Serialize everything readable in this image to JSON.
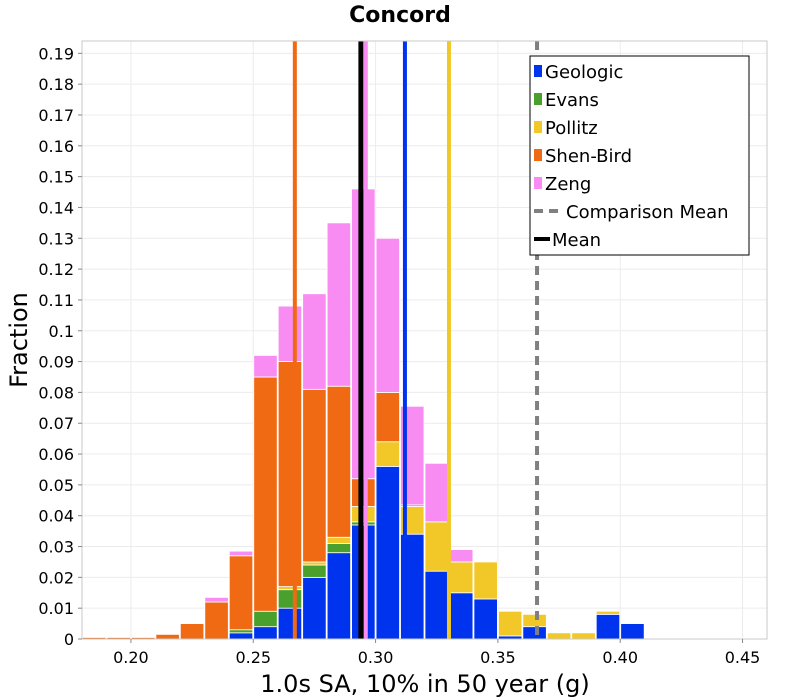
{
  "chart_data": {
    "type": "bar",
    "stacked": true,
    "title": "Concord",
    "xlabel": "1.0s SA, 10% in 50 year (g)",
    "ylabel": "Fraction",
    "xlim": [
      0.18,
      0.46
    ],
    "ylim": [
      0,
      0.194
    ],
    "x_ticks": [
      "0.20",
      "0.25",
      "0.30",
      "0.35",
      "0.40",
      "0.45"
    ],
    "y_ticks": [
      "0",
      "0.01",
      "0.02",
      "0.03",
      "0.04",
      "0.05",
      "0.06",
      "0.07",
      "0.08",
      "0.09",
      "0.1",
      "0.11",
      "0.12",
      "0.13",
      "0.14",
      "0.15",
      "0.16",
      "0.17",
      "0.18",
      "0.19"
    ],
    "grid": true,
    "legend_position": "top-right",
    "bin_width": 0.01,
    "bin_starts": [
      0.18,
      0.19,
      0.2,
      0.21,
      0.22,
      0.23,
      0.24,
      0.25,
      0.26,
      0.27,
      0.28,
      0.29,
      0.3,
      0.31,
      0.32,
      0.33,
      0.34,
      0.35,
      0.36,
      0.37,
      0.38,
      0.39,
      0.4
    ],
    "series": [
      {
        "name": "Geologic",
        "color": "#0033ee",
        "values": [
          0,
          0,
          0,
          0,
          0,
          0,
          0.002,
          0.004,
          0.01,
          0.02,
          0.028,
          0.037,
          0.056,
          0.034,
          0.022,
          0.015,
          0.013,
          0.001,
          0.004,
          0,
          0,
          0.008,
          0.005
        ]
      },
      {
        "name": "Evans",
        "color": "#4aa02c",
        "values": [
          0,
          0,
          0,
          0,
          0,
          0,
          0.001,
          0.005,
          0.006,
          0.004,
          0.003,
          0.001,
          0,
          0,
          0,
          0,
          0,
          0,
          0,
          0,
          0,
          0,
          0
        ]
      },
      {
        "name": "Pollitz",
        "color": "#f2c829",
        "values": [
          0,
          0,
          0,
          0,
          0,
          0,
          0,
          0,
          0.001,
          0.001,
          0.002,
          0.005,
          0.008,
          0.009,
          0.016,
          0.01,
          0.012,
          0.008,
          0.004,
          0.002,
          0.002,
          0.001,
          0
        ]
      },
      {
        "name": "Shen-Bird",
        "color": "#f06a14",
        "values": [
          0.0005,
          0.0005,
          0.0005,
          0.0015,
          0.005,
          0.012,
          0.024,
          0.076,
          0.073,
          0.056,
          0.049,
          0.009,
          0.016,
          0.0005,
          0,
          0,
          0,
          0,
          0,
          0,
          0,
          0,
          0
        ]
      },
      {
        "name": "Zeng",
        "color": "#f98cf3",
        "values": [
          0,
          0,
          0,
          0,
          0,
          0.0015,
          0.0015,
          0.007,
          0.018,
          0.031,
          0.053,
          0.094,
          0.05,
          0.032,
          0.019,
          0.004,
          0,
          0,
          0,
          0,
          0,
          0,
          0
        ]
      }
    ],
    "vertical_lines": [
      {
        "name": "Shen-Bird",
        "x": 0.267,
        "color": "#f06a14",
        "style": "solid"
      },
      {
        "name": "Geologic",
        "x": 0.312,
        "color": "#0033ee",
        "style": "solid"
      },
      {
        "name": "Pollitz",
        "x": 0.33,
        "color": "#f2c829",
        "style": "solid"
      },
      {
        "name": "Zeng",
        "x": 0.296,
        "color": "#f98cf3",
        "style": "solid"
      },
      {
        "name": "Mean",
        "x": 0.294,
        "color": "#000000",
        "style": "solid"
      },
      {
        "name": "Comparison Mean",
        "x": 0.366,
        "color": "#808080",
        "style": "dashed"
      }
    ],
    "legend": [
      {
        "label": "Geologic",
        "color": "#0033ee",
        "kind": "box"
      },
      {
        "label": "Evans",
        "color": "#4aa02c",
        "kind": "box"
      },
      {
        "label": "Pollitz",
        "color": "#f2c829",
        "kind": "box"
      },
      {
        "label": "Shen-Bird",
        "color": "#f06a14",
        "kind": "box"
      },
      {
        "label": "Zeng",
        "color": "#f98cf3",
        "kind": "box"
      },
      {
        "label": "Comparison Mean",
        "color": "#808080",
        "kind": "dash"
      },
      {
        "label": "Mean",
        "color": "#000000",
        "kind": "line"
      }
    ]
  }
}
